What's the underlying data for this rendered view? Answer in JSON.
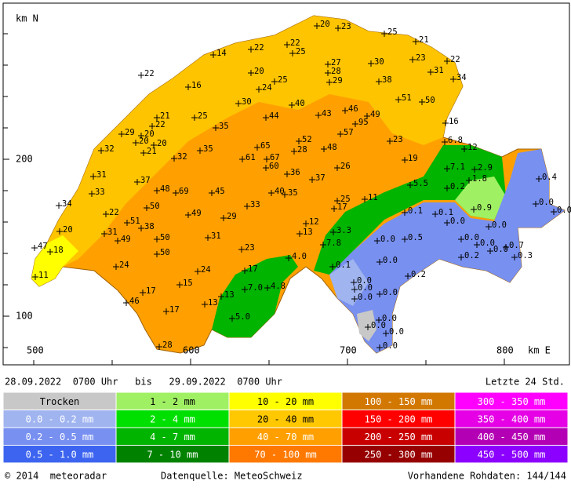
{
  "map": {
    "axis_labels": {
      "north": "km N",
      "east": "km E",
      "y200": "200",
      "y100": "100",
      "x500": "500",
      "x600": "600",
      "x700": "700",
      "x800": "800"
    },
    "stations": [
      "20",
      "23",
      "25",
      "21",
      "22",
      "25",
      "22",
      "14",
      "27",
      "28",
      "30",
      "23",
      "22",
      "22",
      "20",
      "25",
      "24",
      "29",
      "38",
      "31",
      "34",
      "16",
      "30",
      "40",
      "51",
      "50",
      "21",
      "22",
      "25",
      "44",
      "43",
      "46",
      "49",
      "95",
      "35",
      "29",
      "20",
      "20",
      "20",
      "21",
      "32",
      "52",
      "16",
      "6.8",
      "12",
      "57",
      "65",
      "48",
      "28",
      "23",
      "32",
      "35",
      "61",
      "67",
      "60",
      "19",
      "26",
      "36",
      "7.1",
      "2.9",
      "31",
      "37",
      "37",
      "1.8",
      "0.4",
      "33",
      "48",
      "69",
      "45",
      "40",
      "35",
      "5.5",
      "0.2",
      "25",
      "11",
      "17",
      "34",
      "50",
      "33",
      "0.0",
      "0.0",
      "0.9",
      "0.1",
      "0.1",
      "0.0",
      "22",
      "49",
      "29",
      "51",
      "38",
      "31",
      "12",
      "13",
      "3.3",
      "20",
      "0.0",
      "49",
      "50",
      "31",
      "0.0",
      "0.0",
      "0.0",
      "0.7",
      "0.3",
      "0.0",
      "0.5",
      "7.8",
      "47",
      "18",
      "50",
      "23",
      "4.0",
      "0.2",
      "0.0",
      "0.1",
      "24",
      "24",
      "17",
      "11",
      "0.2",
      "0.0",
      "0.0",
      "15",
      "4.8",
      "7.0",
      "0.0",
      "0.0",
      "17",
      "46",
      "13",
      "13",
      "17",
      "5.0",
      "0.0",
      "0.0",
      "0.0",
      "0.0",
      "28"
    ]
  },
  "header": {
    "period": "28.09.2022  0700 Uhr   bis   29.09.2022  0700 Uhr",
    "range": "Letzte 24 Std."
  },
  "legend": [
    [
      {
        "label": "Trocken",
        "color": "#c8c8c8"
      },
      {
        "label": "1 - 2 mm",
        "color": "#a0f064"
      },
      {
        "label": "10 - 20 mm",
        "color": "#ffff00"
      },
      {
        "label": "100 - 150 mm",
        "color": "#d27800"
      },
      {
        "label": "300 - 350 mm",
        "color": "#ff00ff"
      }
    ],
    [
      {
        "label": "0.0 - 0.2 mm",
        "color": "#a0b4f0"
      },
      {
        "label": "2 - 4 mm",
        "color": "#00e000"
      },
      {
        "label": "20 - 40 mm",
        "color": "#ffc800"
      },
      {
        "label": "150 - 200 mm",
        "color": "#ff0000"
      },
      {
        "label": "350 - 400 mm",
        "color": "#e600e6"
      }
    ],
    [
      {
        "label": "0.2 - 0.5 mm",
        "color": "#7890f0"
      },
      {
        "label": "4 - 7 mm",
        "color": "#00b400"
      },
      {
        "label": "40 - 70 mm",
        "color": "#ffa000"
      },
      {
        "label": "200 - 250 mm",
        "color": "#c80000"
      },
      {
        "label": "400 - 450 mm",
        "color": "#b400b4"
      }
    ],
    [
      {
        "label": "0.5 - 1.0 mm",
        "color": "#3c64f0"
      },
      {
        "label": "7 - 10 mm",
        "color": "#008200"
      },
      {
        "label": "70 - 100 mm",
        "color": "#ff7800"
      },
      {
        "label": "250 - 300 mm",
        "color": "#960000"
      },
      {
        "label": "450 - 500 mm",
        "color": "#8c00ff"
      }
    ]
  ],
  "footer": {
    "copyright": "© 2014  meteoradar",
    "source": "Datenquelle: MeteoSchweiz",
    "raw": "Vorhandene Rohdaten: 144/144"
  }
}
